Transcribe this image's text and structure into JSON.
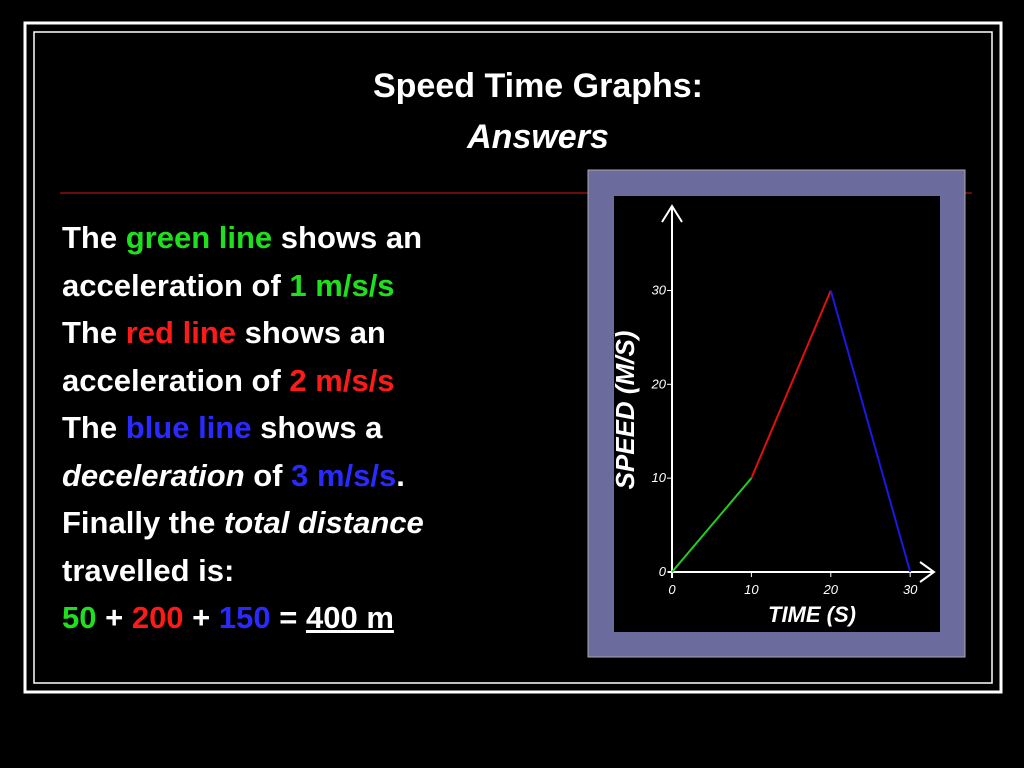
{
  "title": "Speed Time Graphs:",
  "subtitle": "Answers",
  "body": [
    [
      {
        "text": "The "
      },
      {
        "text": "green line",
        "color": "#1fe01f"
      },
      {
        "text": " shows an"
      }
    ],
    [
      {
        "text": "acceleration of "
      },
      {
        "text": "1 m/s/s",
        "color": "#1fe01f"
      }
    ],
    [
      {
        "text": "The "
      },
      {
        "text": "red line",
        "color": "#ff1a1a"
      },
      {
        "text": " shows an"
      }
    ],
    [
      {
        "text": "acceleration of "
      },
      {
        "text": "2 m/s/s",
        "color": "#ff1a1a"
      }
    ],
    [
      {
        "text": "The "
      },
      {
        "text": "blue line",
        "color": "#2a2aff"
      },
      {
        "text": " shows a"
      }
    ],
    [
      {
        "text": "deceleration",
        "style": "italic"
      },
      {
        "text": " of "
      },
      {
        "text": "3 m/s/s",
        "color": "#2a2aff"
      },
      {
        "text": "."
      }
    ],
    [
      {
        "text": "Finally the "
      },
      {
        "text": "total distance",
        "style": "italic"
      }
    ],
    [
      {
        "text": "travelled is:"
      }
    ],
    [
      {
        "text": "50",
        "color": "#1fe01f"
      },
      {
        "text": " + "
      },
      {
        "text": "200",
        "color": "#ff1a1a"
      },
      {
        "text": " + "
      },
      {
        "text": "150",
        "color": "#2a2aff"
      },
      {
        "text": " = "
      },
      {
        "text": "400 m",
        "decoration": "underline"
      }
    ]
  ],
  "chart_data": {
    "type": "line",
    "x_label": "TIME (S)",
    "y_label": "SPEED (M/S)",
    "xlim": [
      0,
      33
    ],
    "ylim": [
      0,
      39
    ],
    "xticks": [
      0,
      10,
      20,
      30
    ],
    "yticks": [
      0,
      10,
      20,
      30
    ],
    "series": [
      {
        "color": "#22cc22",
        "x": [
          0,
          10
        ],
        "values": [
          0,
          10
        ]
      },
      {
        "color": "#e01010",
        "x": [
          10,
          20
        ],
        "values": [
          10,
          30
        ]
      },
      {
        "color": "#1a1ae0",
        "x": [
          20,
          30
        ],
        "values": [
          30,
          0
        ]
      }
    ]
  }
}
